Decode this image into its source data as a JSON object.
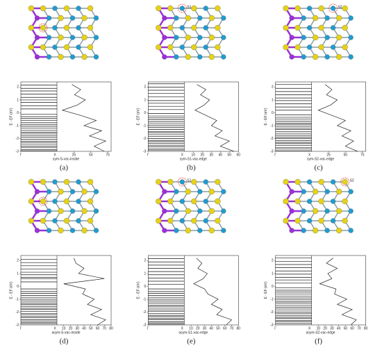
{
  "chart_data": [
    {
      "type": "band-dos",
      "label": "(a)",
      "name": "sym-S-vac-inside",
      "ylabel": "E - EF (eV)",
      "ylim": [
        -3,
        2.4
      ],
      "yticks": [
        -3,
        -2,
        -1,
        0,
        1,
        2
      ],
      "k_labels": [
        "Γ",
        "X"
      ],
      "dos_xlim": [
        0,
        80
      ],
      "dos_xticks": [
        25,
        50,
        75
      ],
      "bands": [
        -2.95,
        -2.85,
        -2.7,
        -2.6,
        -2.45,
        -2.3,
        -2.2,
        -2.05,
        -1.9,
        -1.75,
        -1.6,
        -1.5,
        -1.35,
        -1.2,
        -1.05,
        -0.9,
        -0.75,
        -0.6,
        -0.45,
        -0.3,
        -0.1,
        0.3,
        0.55,
        0.8,
        1.0,
        1.2,
        1.45,
        1.7,
        1.9,
        2.15
      ],
      "dos": {
        "energy": [
          -3,
          -2.6,
          -2.2,
          -1.8,
          -1.4,
          -1,
          -0.6,
          -0.2,
          0.2,
          0.6,
          1,
          1.4,
          1.8,
          2.2
        ],
        "density": [
          70,
          55,
          72,
          48,
          66,
          40,
          58,
          35,
          8,
          30,
          42,
          26,
          35,
          22
        ]
      }
    },
    {
      "type": "band-dos",
      "label": "(b)",
      "name": "sym-S1-vac-edge",
      "annotation": "S1",
      "ylabel": "E - EF (eV)",
      "ylim": [
        -3,
        2.4
      ],
      "yticks": [
        -3,
        -2,
        -1,
        0,
        1,
        2
      ],
      "k_labels": [
        "Γ",
        "X"
      ],
      "dos_xlim": [
        0,
        60
      ],
      "dos_xticks": [
        10,
        20,
        30,
        40,
        50,
        60
      ],
      "bands": [
        -2.9,
        -2.8,
        -2.65,
        -2.55,
        -2.4,
        -2.25,
        -2.15,
        -2.0,
        -1.85,
        -1.7,
        -1.55,
        -1.45,
        -1.3,
        -1.15,
        -1.0,
        -0.85,
        -0.7,
        -0.55,
        -0.4,
        -0.25,
        -0.05,
        0.25,
        0.5,
        0.75,
        0.95,
        1.25,
        1.5,
        1.75,
        2.0,
        2.25
      ],
      "dos": {
        "energy": [
          -3,
          -2.6,
          -2.2,
          -1.8,
          -1.4,
          -1,
          -0.6,
          -0.2,
          0.2,
          0.6,
          1,
          1.4,
          1.8,
          2.2
        ],
        "density": [
          55,
          40,
          50,
          34,
          42,
          30,
          36,
          24,
          12,
          22,
          28,
          18,
          24,
          14
        ]
      }
    },
    {
      "type": "band-dos",
      "label": "(c)",
      "name": "sym-S2-vac-edge",
      "annotation": "S2",
      "ylabel": "E - EF (eV)",
      "ylim": [
        -3,
        2.4
      ],
      "yticks": [
        -3,
        -2,
        -1,
        0,
        1,
        2
      ],
      "k_labels": [
        "Γ",
        "X"
      ],
      "dos_xlim": [
        0,
        80
      ],
      "dos_xticks": [
        25,
        50,
        75
      ],
      "bands": [
        -2.95,
        -2.8,
        -2.7,
        -2.55,
        -2.4,
        -2.3,
        -2.15,
        -2.0,
        -1.9,
        -1.75,
        -1.6,
        -1.45,
        -1.3,
        -1.2,
        -1.05,
        -0.9,
        -0.8,
        -0.65,
        -0.5,
        -0.35,
        -0.15,
        0.2,
        0.45,
        0.7,
        0.95,
        1.15,
        1.4,
        1.65,
        1.9,
        2.2
      ],
      "dos": {
        "energy": [
          -3,
          -2.6,
          -2.2,
          -1.8,
          -1.4,
          -1,
          -0.6,
          -0.2,
          0.2,
          0.6,
          1,
          1.4,
          1.8,
          2.2
        ],
        "density": [
          68,
          50,
          62,
          45,
          58,
          38,
          50,
          30,
          10,
          28,
          38,
          22,
          30,
          20
        ]
      }
    },
    {
      "type": "band-dos",
      "label": "(d)",
      "name": "asym-S-vac-inside",
      "ylabel": "E - EF (eV)",
      "ylim": [
        -3,
        2.4
      ],
      "yticks": [
        -3,
        -2,
        -1,
        0,
        1,
        2
      ],
      "k_labels": [
        "Γ",
        "X"
      ],
      "dos_xlim": [
        0,
        80
      ],
      "dos_xticks": [
        10,
        20,
        30,
        40,
        50,
        60,
        70,
        80
      ],
      "bands": [
        -2.9,
        -2.8,
        -2.7,
        -2.6,
        -2.45,
        -2.35,
        -2.2,
        -2.1,
        -1.95,
        -1.8,
        -1.7,
        -1.55,
        -1.4,
        -1.3,
        -1.15,
        -1.0,
        -0.85,
        -0.7,
        -0.55,
        -0.4,
        -0.2,
        0.35,
        0.6,
        0.7,
        0.9,
        1.1,
        1.35,
        1.6,
        1.85,
        2.1
      ],
      "dos": {
        "energy": [
          -3,
          -2.6,
          -2.2,
          -1.8,
          -1.4,
          -1,
          -0.6,
          -0.2,
          0.2,
          0.6,
          1,
          1.4,
          1.8,
          2.2
        ],
        "density": [
          60,
          72,
          50,
          66,
          45,
          55,
          38,
          42,
          10,
          70,
          32,
          40,
          28,
          25
        ]
      }
    },
    {
      "type": "band-dos",
      "label": "(e)",
      "name": "asym-S1-vac-edge",
      "annotation": "S1",
      "ylabel": "E - EF (eV)",
      "ylim": [
        -3,
        2.4
      ],
      "yticks": [
        -3,
        -2,
        -1,
        0,
        1,
        2
      ],
      "k_labels": [
        "Γ",
        "X"
      ],
      "dos_xlim": [
        0,
        80
      ],
      "dos_xticks": [
        10,
        20,
        30,
        40,
        50,
        60,
        70,
        80
      ],
      "bands": [
        -2.95,
        -2.85,
        -2.75,
        -2.6,
        -2.5,
        -2.35,
        -2.25,
        -2.1,
        -1.95,
        -1.85,
        -1.7,
        -1.55,
        -1.45,
        -1.3,
        -1.15,
        -1.0,
        -0.85,
        -0.7,
        -0.55,
        -0.4,
        -0.2,
        0.15,
        0.4,
        0.65,
        0.9,
        1.15,
        1.4,
        1.65,
        1.9,
        2.15
      ],
      "dos": {
        "energy": [
          -3,
          -2.6,
          -2.2,
          -1.8,
          -1.4,
          -1,
          -0.6,
          -0.2,
          0.2,
          0.6,
          1,
          1.4,
          1.8,
          2.2
        ],
        "density": [
          62,
          70,
          48,
          56,
          40,
          50,
          35,
          30,
          14,
          28,
          34,
          20,
          26,
          18
        ]
      }
    },
    {
      "type": "band-dos",
      "label": "(f)",
      "name": "asym-S2-vac-edge",
      "annotation": "S2",
      "ylabel": "E - EF (eV)",
      "ylim": [
        -3,
        2.4
      ],
      "yticks": [
        -3,
        -2,
        -1,
        0,
        1,
        2
      ],
      "k_labels": [
        "Γ",
        "X"
      ],
      "dos_xlim": [
        0,
        80
      ],
      "dos_xticks": [
        10,
        20,
        30,
        40,
        50,
        60,
        70,
        80
      ],
      "bands": [
        -2.9,
        -2.75,
        -2.65,
        -2.5,
        -2.4,
        -2.25,
        -2.1,
        -2.0,
        -1.85,
        -1.7,
        -1.6,
        -1.45,
        -1.3,
        -1.2,
        -1.05,
        -0.9,
        -0.75,
        -0.6,
        -0.45,
        -0.3,
        -0.1,
        0.25,
        0.5,
        0.7,
        0.95,
        1.2,
        1.45,
        1.7,
        1.95,
        2.2
      ],
      "dos": {
        "energy": [
          -3,
          -2.6,
          -2.2,
          -1.8,
          -1.4,
          -1,
          -0.6,
          -0.2,
          0.2,
          0.6,
          1,
          1.4,
          1.8,
          2.2
        ],
        "density": [
          58,
          66,
          45,
          60,
          38,
          52,
          34,
          36,
          12,
          30,
          24,
          38,
          22,
          32
        ]
      }
    }
  ]
}
